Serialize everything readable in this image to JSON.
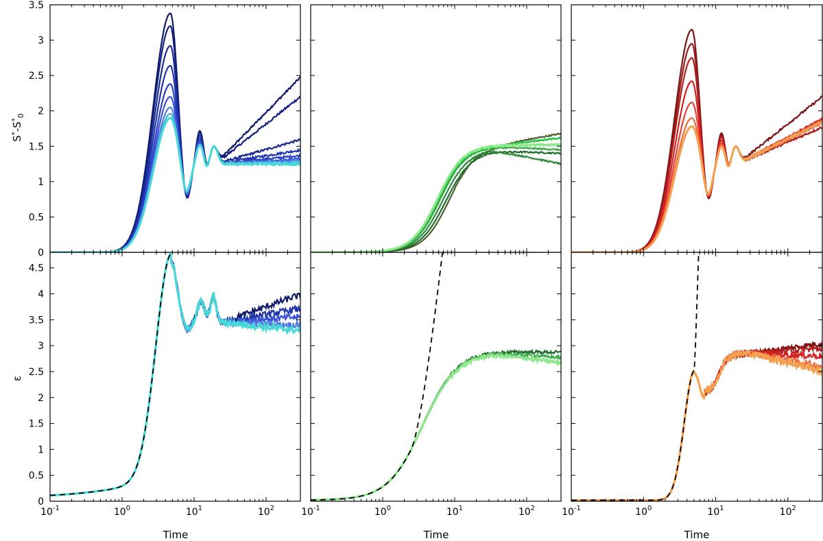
{
  "figure": {
    "xlabel": "Time",
    "ylabel_top": "S*-S*0",
    "ylabel_bottom": "ε",
    "x_ticks": [
      {
        "base": "10",
        "exp": "-1",
        "value": 0.1
      },
      {
        "base": "10",
        "exp": "0",
        "value": 1
      },
      {
        "base": "10",
        "exp": "1",
        "value": 10
      },
      {
        "base": "10",
        "exp": "2",
        "value": 100
      }
    ],
    "xlim": [
      0.1,
      300
    ],
    "top_yticks": [
      "0",
      "0.5",
      "1",
      "1.5",
      "2",
      "2.5",
      "3",
      "3.5"
    ],
    "bottom_yticks": [
      "0",
      "0.5",
      "1",
      "1.5",
      "2",
      "2.5",
      "3",
      "3.5",
      "4",
      "4.5"
    ]
  },
  "chart_data": [
    {
      "id": "top-blue",
      "type": "line",
      "xscale": "log",
      "xlabel": "Time",
      "ylabel": "S*-S*0",
      "ylim": [
        0,
        3.5
      ],
      "style": "oscillating",
      "peak": [
        3.38,
        2.18,
        1.88
      ],
      "series": [
        {
          "name": "b1",
          "color": "#0f1a6b",
          "peak1": 3.38,
          "end": 2.5
        },
        {
          "name": "b2",
          "color": "#14207e",
          "peak1": 3.2,
          "end": 2.22
        },
        {
          "name": "b3",
          "color": "#1a2a92",
          "peak1": 2.92,
          "end": 1.6
        },
        {
          "name": "b4",
          "color": "#1f35a8",
          "peak1": 2.64,
          "end": 1.45
        },
        {
          "name": "b5",
          "color": "#2740c4",
          "peak1": 2.38,
          "end": 1.37
        },
        {
          "name": "b6",
          "color": "#3a52d8",
          "peak1": 2.2,
          "end": 1.32
        },
        {
          "name": "b7",
          "color": "#4f7ae0",
          "peak1": 2.05,
          "end": 1.3
        },
        {
          "name": "b8",
          "color": "#3fb4e0",
          "peak1": 1.96,
          "end": 1.28
        },
        {
          "name": "b9",
          "color": "#48d8d8",
          "peak1": 1.9,
          "end": 1.25
        }
      ]
    },
    {
      "id": "top-green",
      "type": "line",
      "xscale": "log",
      "ylim": [
        0,
        3.5
      ],
      "style": "sigmoid",
      "series": [
        {
          "name": "g1",
          "color": "#4a5e2a",
          "plateau": 1.5,
          "x50": 8.5,
          "end": 1.68
        },
        {
          "name": "g2",
          "color": "#1f6b2a",
          "plateau": 1.44,
          "x50": 7.5,
          "end": 1.4
        },
        {
          "name": "g3",
          "color": "#2a8a3a",
          "plateau": 1.46,
          "x50": 6.8,
          "end": 1.25
        },
        {
          "name": "g4",
          "color": "#3aa84a",
          "plateau": 1.5,
          "x50": 6.3,
          "end": 1.45
        },
        {
          "name": "g5",
          "color": "#1ec43a",
          "plateau": 1.5,
          "x50": 6.0,
          "end": 1.62
        },
        {
          "name": "g6",
          "color": "#8ee88e",
          "plateau": 1.52,
          "x50": 5.8,
          "end": 1.52
        }
      ]
    },
    {
      "id": "top-red",
      "type": "line",
      "xscale": "log",
      "ylim": [
        0,
        3.5
      ],
      "style": "oscillating",
      "series": [
        {
          "name": "r1",
          "color": "#7a1414",
          "peak1": 3.15,
          "end": 2.22
        },
        {
          "name": "r2",
          "color": "#961a1a",
          "peak1": 2.95,
          "end": 1.85
        },
        {
          "name": "r3",
          "color": "#b01e1e",
          "peak1": 2.75,
          "end": 1.78
        },
        {
          "name": "r4",
          "color": "#d42020",
          "peak1": 2.42,
          "end": 1.9
        },
        {
          "name": "r5",
          "color": "#e84030",
          "peak1": 2.12,
          "end": 1.88
        },
        {
          "name": "r6",
          "color": "#ee6a3a",
          "peak1": 1.9,
          "end": 1.84
        },
        {
          "name": "r7",
          "color": "#f4a050",
          "peak1": 1.78,
          "end": 1.86
        }
      ]
    },
    {
      "id": "bottom-blue",
      "type": "line",
      "xscale": "log",
      "xlabel": "Time",
      "ylabel": "ε",
      "ylim": [
        0,
        4.8
      ],
      "style": "epsilon-oscillating",
      "reference": "dashed exponential fit",
      "series": [
        {
          "name": "b1",
          "color": "#0f1a6b",
          "end": 3.95
        },
        {
          "name": "b2",
          "color": "#1f35a8",
          "end": 3.7
        },
        {
          "name": "b3",
          "color": "#3a52d8",
          "end": 3.55
        },
        {
          "name": "b4",
          "color": "#4f7ae0",
          "end": 3.4
        },
        {
          "name": "b5",
          "color": "#48d8d8",
          "end": 3.3
        }
      ]
    },
    {
      "id": "bottom-green",
      "type": "line",
      "xscale": "log",
      "xlabel": "Time",
      "ylim": [
        0,
        4.8
      ],
      "style": "epsilon-sigmoid",
      "reference": "dashed exponential fit",
      "series": [
        {
          "name": "g1",
          "color": "#1f6b2a",
          "plateau": 2.88,
          "end": 2.85
        },
        {
          "name": "g2",
          "color": "#3aa84a",
          "plateau": 2.86,
          "end": 2.75
        },
        {
          "name": "g3",
          "color": "#8ee88e",
          "plateau": 2.84,
          "end": 2.65
        }
      ]
    },
    {
      "id": "bottom-red",
      "type": "line",
      "xscale": "log",
      "xlabel": "Time",
      "ylim": [
        0,
        4.8
      ],
      "style": "epsilon-spike",
      "reference": "dashed exponential fit",
      "series": [
        {
          "name": "r1",
          "color": "#7a1414",
          "end": 3.05
        },
        {
          "name": "r2",
          "color": "#b01e1e",
          "end": 2.95
        },
        {
          "name": "r3",
          "color": "#d42020",
          "end": 2.8
        },
        {
          "name": "r4",
          "color": "#ee6a3a",
          "end": 2.6
        },
        {
          "name": "r5",
          "color": "#f4a050",
          "end": 2.5
        }
      ]
    }
  ]
}
